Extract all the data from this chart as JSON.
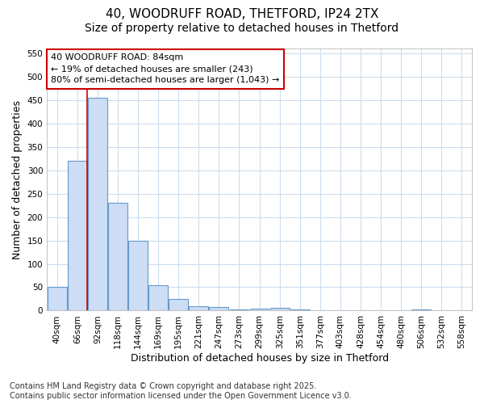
{
  "title_line1": "40, WOODRUFF ROAD, THETFORD, IP24 2TX",
  "title_line2": "Size of property relative to detached houses in Thetford",
  "xlabel": "Distribution of detached houses by size in Thetford",
  "ylabel": "Number of detached properties",
  "categories": [
    "40sqm",
    "66sqm",
    "92sqm",
    "118sqm",
    "144sqm",
    "169sqm",
    "195sqm",
    "221sqm",
    "247sqm",
    "273sqm",
    "299sqm",
    "325sqm",
    "351sqm",
    "377sqm",
    "403sqm",
    "428sqm",
    "454sqm",
    "480sqm",
    "506sqm",
    "532sqm",
    "558sqm"
  ],
  "values": [
    50,
    320,
    455,
    230,
    150,
    55,
    25,
    10,
    8,
    3,
    5,
    6,
    2,
    0,
    0,
    0,
    0,
    0,
    3,
    0,
    0
  ],
  "bar_color": "#ccddf5",
  "bar_edge_color": "#6699cc",
  "annotation_text": "40 WOODRUFF ROAD: 84sqm\n← 19% of detached houses are smaller (243)\n80% of semi-detached houses are larger (1,043) →",
  "annotation_box_color": "#ffffff",
  "annotation_box_edge": "#cc0000",
  "vline_color": "#cc0000",
  "vline_x": 1.5,
  "ylim": [
    0,
    560
  ],
  "yticks": [
    0,
    50,
    100,
    150,
    200,
    250,
    300,
    350,
    400,
    450,
    500,
    550
  ],
  "footer": "Contains HM Land Registry data © Crown copyright and database right 2025.\nContains public sector information licensed under the Open Government Licence v3.0.",
  "bg_color": "#ffffff",
  "plot_bg_color": "#ffffff",
  "grid_color": "#ccddee",
  "title_fontsize": 11,
  "subtitle_fontsize": 10,
  "axis_label_fontsize": 9,
  "tick_fontsize": 7.5,
  "footer_fontsize": 7
}
